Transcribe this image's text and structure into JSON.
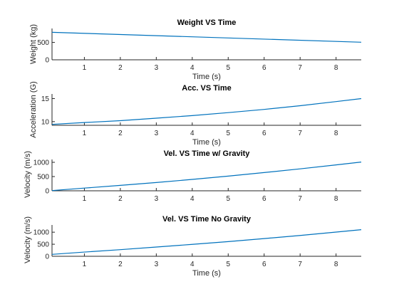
{
  "chart_data": [
    {
      "type": "line",
      "title": "Weight VS Time",
      "xlabel": "Time (s)",
      "ylabel": "Weight (kg)",
      "xlim": [
        0.1,
        8.7
      ],
      "ylim": [
        0,
        900
      ],
      "xticks": [
        1,
        2,
        3,
        4,
        5,
        6,
        7,
        8
      ],
      "yticks": [
        0,
        500
      ],
      "grid": false,
      "series": [
        {
          "x": [
            0.1,
            8.7
          ],
          "y": [
            790,
            505
          ]
        }
      ]
    },
    {
      "type": "line",
      "title": "Acc. VS Time",
      "xlabel": "Time (s)",
      "ylabel": "Acceleration (G)",
      "xlim": [
        0.1,
        8.7
      ],
      "ylim": [
        9.2,
        16
      ],
      "xticks": [
        1,
        2,
        3,
        4,
        5,
        6,
        7,
        8
      ],
      "yticks": [
        10,
        15
      ],
      "grid": false,
      "series": [
        {
          "x": [
            0.1,
            1,
            2,
            3,
            4,
            5,
            6,
            7,
            8,
            8.7
          ],
          "y": [
            9.4,
            9.8,
            10.2,
            10.75,
            11.3,
            11.95,
            12.65,
            13.45,
            14.35,
            15.0
          ]
        }
      ]
    },
    {
      "type": "line",
      "title": "Vel. VS Time w/ Gravity",
      "xlabel": "",
      "ylabel": "Velocity (m/s)",
      "xlim": [
        0.1,
        8.7
      ],
      "ylim": [
        0,
        1100
      ],
      "xticks": [
        1,
        2,
        3,
        4,
        5,
        6,
        7,
        8
      ],
      "yticks": [
        0,
        500,
        1000
      ],
      "grid": false,
      "series": [
        {
          "x": [
            0.1,
            1,
            2,
            3,
            4,
            5,
            6,
            7,
            8,
            8.7
          ],
          "y": [
            8,
            95,
            190,
            290,
            400,
            515,
            640,
            770,
            910,
            1010
          ]
        }
      ]
    },
    {
      "type": "line",
      "title": "Vel. VS Time No Gravity",
      "xlabel": "Time (s)",
      "ylabel": "Velocity (m/s)",
      "xlim": [
        0.1,
        8.7
      ],
      "ylim": [
        0,
        1300
      ],
      "xticks": [
        1,
        2,
        3,
        4,
        5,
        6,
        7,
        8
      ],
      "yticks": [
        0,
        500,
        1000
      ],
      "grid": false,
      "series": [
        {
          "x": [
            0.1,
            1,
            2,
            3,
            4,
            5,
            6,
            7,
            8,
            8.7
          ],
          "y": [
            80,
            175,
            275,
            385,
            495,
            610,
            735,
            865,
            1005,
            1105
          ]
        }
      ]
    }
  ],
  "style": {
    "line_color": "#0072BD",
    "axis_color": "#262626"
  }
}
